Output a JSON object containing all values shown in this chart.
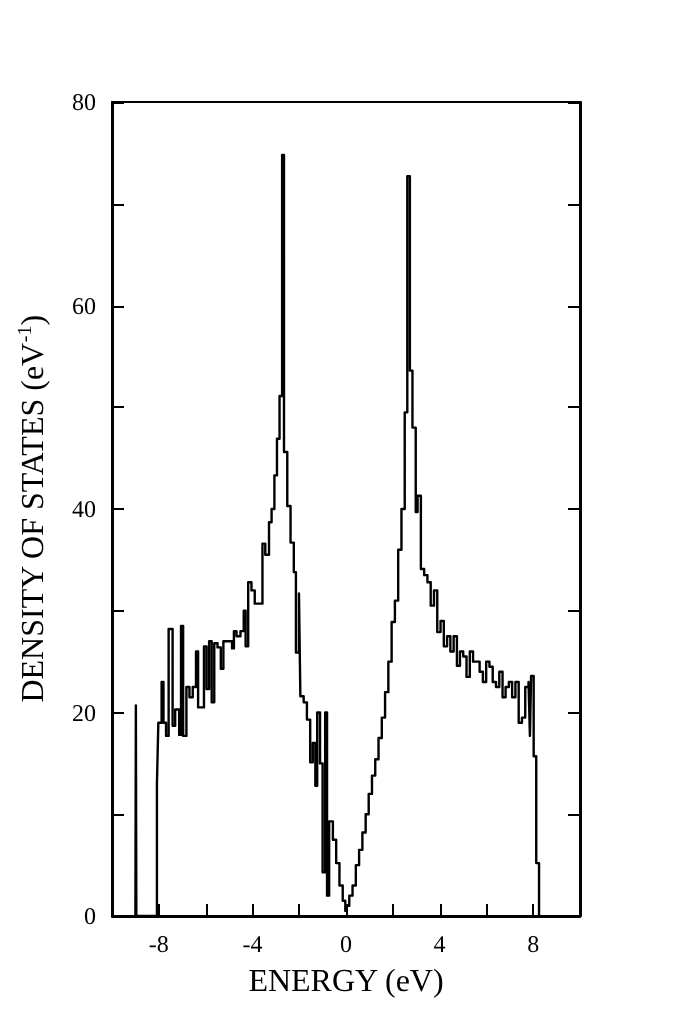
{
  "chart_data": {
    "type": "step",
    "xlabel": "ENERGY (eV)",
    "ylabel": "DENSITY OF STATES (eV$^{-1}$)",
    "xlim": [
      -10,
      10
    ],
    "ylim": [
      0,
      80
    ],
    "xticks": [
      {
        "value": -10,
        "label": null
      },
      -8,
      {
        "value": -6,
        "label": null
      },
      -4,
      {
        "value": -2,
        "label": null
      },
      0,
      {
        "value": 2,
        "label": null
      },
      4,
      {
        "value": 6,
        "label": null
      },
      8,
      {
        "value": 10,
        "label": null
      }
    ],
    "yticks": [
      0,
      {
        "value": 10,
        "label": null
      },
      20,
      {
        "value": 30,
        "label": null
      },
      40,
      {
        "value": 50,
        "label": null
      },
      60,
      {
        "value": 70,
        "label": null
      },
      80
    ],
    "series": [
      {
        "color": "#000000",
        "x": [
          -9.0,
          -8.98,
          -8.96,
          -8.08,
          -8.02,
          -7.88,
          -7.8,
          -7.69,
          -7.58,
          -7.41,
          -7.3,
          -7.13,
          -7.05,
          -6.96,
          -6.82,
          -6.69,
          -6.55,
          -6.41,
          -6.32,
          -6.07,
          -5.96,
          -5.85,
          -5.74,
          -5.63,
          -5.49,
          -5.35,
          -5.24,
          -5.01,
          -4.87,
          -4.79,
          -4.68,
          -4.51,
          -4.37,
          -4.29,
          -4.18,
          -4.04,
          -3.9,
          -3.57,
          -3.45,
          -3.29,
          -3.18,
          -3.06,
          -2.95,
          -2.84,
          -2.73,
          -2.65,
          -2.51,
          -2.37,
          -2.23,
          -2.14,
          -2.01,
          -1.95,
          -1.81,
          -1.67,
          -1.53,
          -1.42,
          -1.31,
          -1.23,
          -1.11,
          -1.0,
          -0.89,
          -0.81,
          -0.72,
          -0.56,
          -0.42,
          -0.28,
          -0.14,
          -0.03,
          0.0,
          0.14,
          0.28,
          0.42,
          0.56,
          0.7,
          0.84,
          0.97,
          1.11,
          1.25,
          1.39,
          1.53,
          1.67,
          1.81,
          1.95,
          2.09,
          2.23,
          2.37,
          2.51,
          2.62,
          2.73,
          2.84,
          2.98,
          3.06,
          3.2,
          3.34,
          3.48,
          3.62,
          3.76,
          3.9,
          4.04,
          4.18,
          4.32,
          4.46,
          4.6,
          4.74,
          4.87,
          5.01,
          5.15,
          5.29,
          5.43,
          5.57,
          5.71,
          5.85,
          5.99,
          6.13,
          6.27,
          6.41,
          6.55,
          6.69,
          6.82,
          6.96,
          7.1,
          7.24,
          7.38,
          7.52,
          7.66,
          7.8,
          7.86,
          7.91,
          8.02,
          8.13,
          8.25
        ],
        "values": [
          0,
          20.7,
          0,
          13,
          19,
          23,
          19,
          17.7,
          28.2,
          18.7,
          20.3,
          17.8,
          28.5,
          17.7,
          22.5,
          21.5,
          22.5,
          26,
          20.5,
          26.5,
          22.3,
          27,
          21,
          26.8,
          26.4,
          24.3,
          27,
          27,
          26.3,
          28,
          27.5,
          28,
          30,
          26.5,
          32.8,
          32,
          30.7,
          36.6,
          35.5,
          38.7,
          40,
          43.3,
          46.9,
          51.1,
          74.8,
          45.6,
          40.3,
          36.7,
          33.8,
          25.9,
          31.7,
          21.6,
          21,
          19.3,
          15.1,
          17,
          12.8,
          20,
          15,
          4.3,
          20,
          2,
          9.3,
          7.5,
          5.2,
          3,
          1.5,
          0.5,
          1,
          2,
          3,
          5,
          6.5,
          8.2,
          10,
          12,
          13.8,
          15.4,
          17.5,
          19.5,
          22,
          25,
          28.9,
          31,
          36,
          40,
          49.5,
          72.7,
          53.6,
          48,
          39.7,
          41.3,
          34.1,
          33.5,
          32.8,
          30.5,
          32,
          27.9,
          29,
          26.5,
          27.5,
          26,
          27.5,
          24.6,
          26,
          25.5,
          23.5,
          26,
          25,
          25,
          24,
          23,
          25,
          24.5,
          23,
          22.5,
          24,
          21.5,
          22.5,
          23,
          21.5,
          23,
          19,
          19.5,
          22.5,
          23,
          17.7,
          23.6,
          15.7,
          5.2,
          0
        ]
      }
    ]
  }
}
